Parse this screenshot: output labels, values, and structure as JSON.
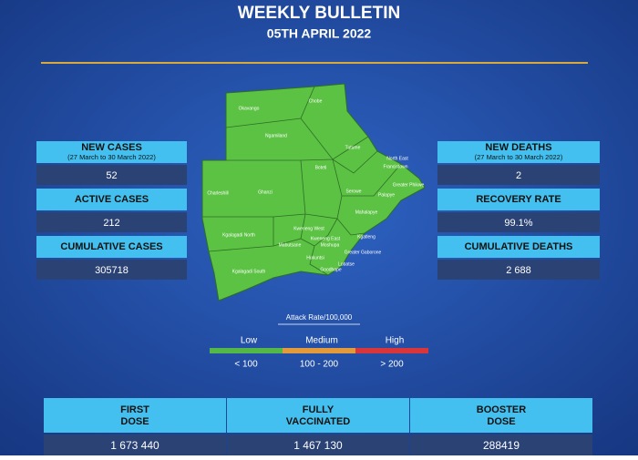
{
  "header": {
    "title": "WEEKLY BULLETIN",
    "date": "05TH APRIL 2022"
  },
  "left_stats": [
    {
      "label": "NEW CASES",
      "period": "(27 March to 30 March 2022)",
      "value": "52"
    },
    {
      "label": "ACTIVE CASES",
      "value": "212"
    },
    {
      "label": "CUMULATIVE CASES",
      "value": "305718"
    }
  ],
  "right_stats": [
    {
      "label": "NEW DEATHS",
      "period": "(27 March to 30 March 2022)",
      "value": "2"
    },
    {
      "label": "RECOVERY RATE",
      "value": "99.1%"
    },
    {
      "label": "CUMULATIVE DEATHS",
      "value": "2 688"
    }
  ],
  "map": {
    "districts": [
      "Chobe",
      "Okavango",
      "Ngamiland",
      "Tutume",
      "Boteti",
      "North East",
      "Francistown",
      "Greater Phikwe",
      "Serowe",
      "Palapye",
      "Charleshill",
      "Ghanzi",
      "Mahalapye",
      "Kweneng West",
      "Kgatleng",
      "Kgalagadi North",
      "Kweneng East",
      "Mabutsane",
      "Moshupa",
      "Greater Gaborone",
      "Hukuntsi",
      "Lobatse",
      "Kgalagadi South",
      "Goodhope"
    ]
  },
  "legend": {
    "title": "Attack Rate/100,000",
    "levels": [
      {
        "name": "Low",
        "range": "< 100"
      },
      {
        "name": "Medium",
        "range": "100 - 200"
      },
      {
        "name": "High",
        "range": "> 200"
      }
    ]
  },
  "vaccination": [
    {
      "label": "FIRST DOSE",
      "value": "1 673 440"
    },
    {
      "label": "FULLY VACCINATED",
      "value": "1 467 130"
    },
    {
      "label": "BOOSTER DOSE",
      "value": "288419"
    }
  ]
}
